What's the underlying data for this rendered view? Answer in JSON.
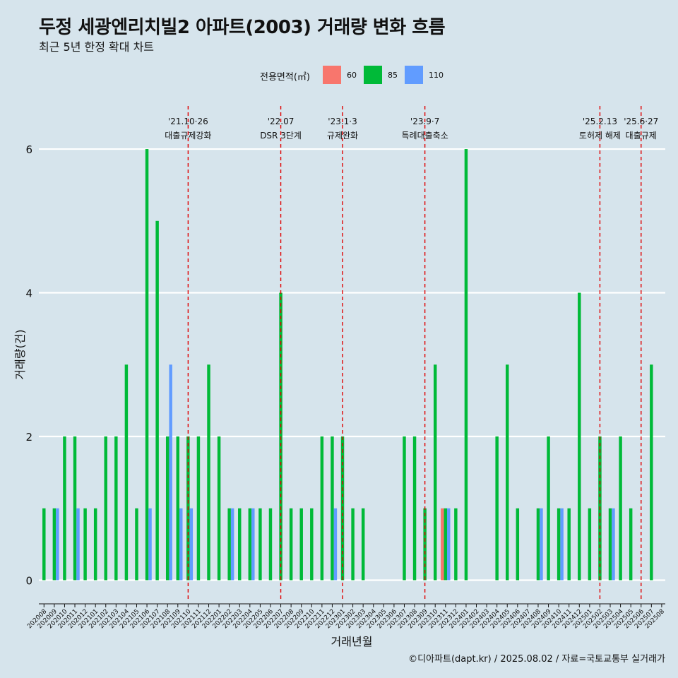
{
  "title": "두정 세광엔리치빌2 아파트(2003) 거래량 변화 흐름",
  "subtitle": "최근 5년 한정 확대 차트",
  "caption": "©디아파트(dapt.kr) / 2025.08.02 / 자료=국토교통부 실거래가",
  "legend": {
    "title": "전용면적(㎡)",
    "items": [
      {
        "label": "60",
        "color": "#f8766d"
      },
      {
        "label": "85",
        "color": "#00ba38"
      },
      {
        "label": "110",
        "color": "#619cff"
      }
    ]
  },
  "chart_data": {
    "type": "bar",
    "stacked": false,
    "xlabel": "거래년월",
    "ylabel": "거래량(건)",
    "ylim": [
      -0.3,
      6.6
    ],
    "yticks": [
      0,
      2,
      4,
      6
    ],
    "grid": true,
    "legend_position": "top",
    "categories": [
      "202008",
      "202009",
      "202010",
      "202011",
      "202012",
      "202101",
      "202102",
      "202103",
      "202104",
      "202105",
      "202106",
      "202107",
      "202108",
      "202109",
      "202110",
      "202111",
      "202112",
      "202201",
      "202202",
      "202203",
      "202204",
      "202205",
      "202206",
      "202207",
      "202208",
      "202209",
      "202210",
      "202211",
      "202212",
      "202301",
      "202302",
      "202303",
      "202304",
      "202305",
      "202306",
      "202307",
      "202308",
      "202309",
      "202310",
      "202311",
      "202312",
      "202401",
      "202402",
      "202403",
      "202404",
      "202405",
      "202406",
      "202407",
      "202408",
      "202409",
      "202410",
      "202411",
      "202412",
      "202501",
      "202502",
      "202503",
      "202504",
      "202505",
      "202506",
      "202507",
      "202508"
    ],
    "series": [
      {
        "name": "60",
        "color": "#f8766d",
        "values": [
          0,
          0,
          0,
          0,
          0,
          0,
          0,
          0,
          0,
          0,
          0,
          0,
          0,
          0,
          0,
          0,
          0,
          0,
          0,
          0,
          0,
          0,
          0,
          0,
          0,
          0,
          0,
          0,
          0,
          0,
          0,
          0,
          0,
          0,
          0,
          0,
          0,
          0,
          0,
          1,
          0,
          0,
          0,
          0,
          0,
          0,
          0,
          0,
          0,
          0,
          0,
          0,
          0,
          0,
          0,
          0,
          0,
          0,
          0,
          0,
          0
        ]
      },
      {
        "name": "85",
        "color": "#00ba38",
        "values": [
          1,
          1,
          2,
          2,
          1,
          1,
          2,
          2,
          3,
          1,
          6,
          5,
          2,
          2,
          2,
          2,
          3,
          2,
          1,
          1,
          1,
          1,
          1,
          4,
          1,
          1,
          1,
          2,
          2,
          2,
          1,
          1,
          0,
          0,
          0,
          2,
          2,
          1,
          3,
          1,
          1,
          6,
          0,
          0,
          2,
          3,
          1,
          0,
          1,
          2,
          1,
          1,
          4,
          1,
          2,
          1,
          2,
          1,
          0,
          3,
          0
        ]
      },
      {
        "name": "110",
        "color": "#619cff",
        "values": [
          0,
          1,
          0,
          1,
          0,
          0,
          0,
          0,
          0,
          0,
          1,
          0,
          3,
          1,
          1,
          0,
          0,
          0,
          1,
          0,
          1,
          0,
          0,
          0,
          0,
          0,
          0,
          0,
          1,
          0,
          0,
          0,
          0,
          0,
          0,
          0,
          0,
          0,
          0,
          1,
          0,
          0,
          0,
          0,
          0,
          0,
          0,
          0,
          1,
          0,
          1,
          0,
          0,
          0,
          0,
          1,
          0,
          0,
          0,
          0,
          0
        ]
      }
    ],
    "events": [
      {
        "x": "202110",
        "date": "'21.10·26",
        "label": "대출규제강화"
      },
      {
        "x": "202207",
        "date": "'22.07",
        "label": "DSR 3단계"
      },
      {
        "x": "202301",
        "date": "'23.1·3",
        "label": "규제완화"
      },
      {
        "x": "202309",
        "date": "'23.9·7",
        "label": "특례대출축소"
      },
      {
        "x": "202502",
        "date": "'25.2.13",
        "label": "토허제 해제"
      },
      {
        "x": "202506",
        "date": "'25.6·27",
        "label": "대출규제"
      }
    ]
  }
}
